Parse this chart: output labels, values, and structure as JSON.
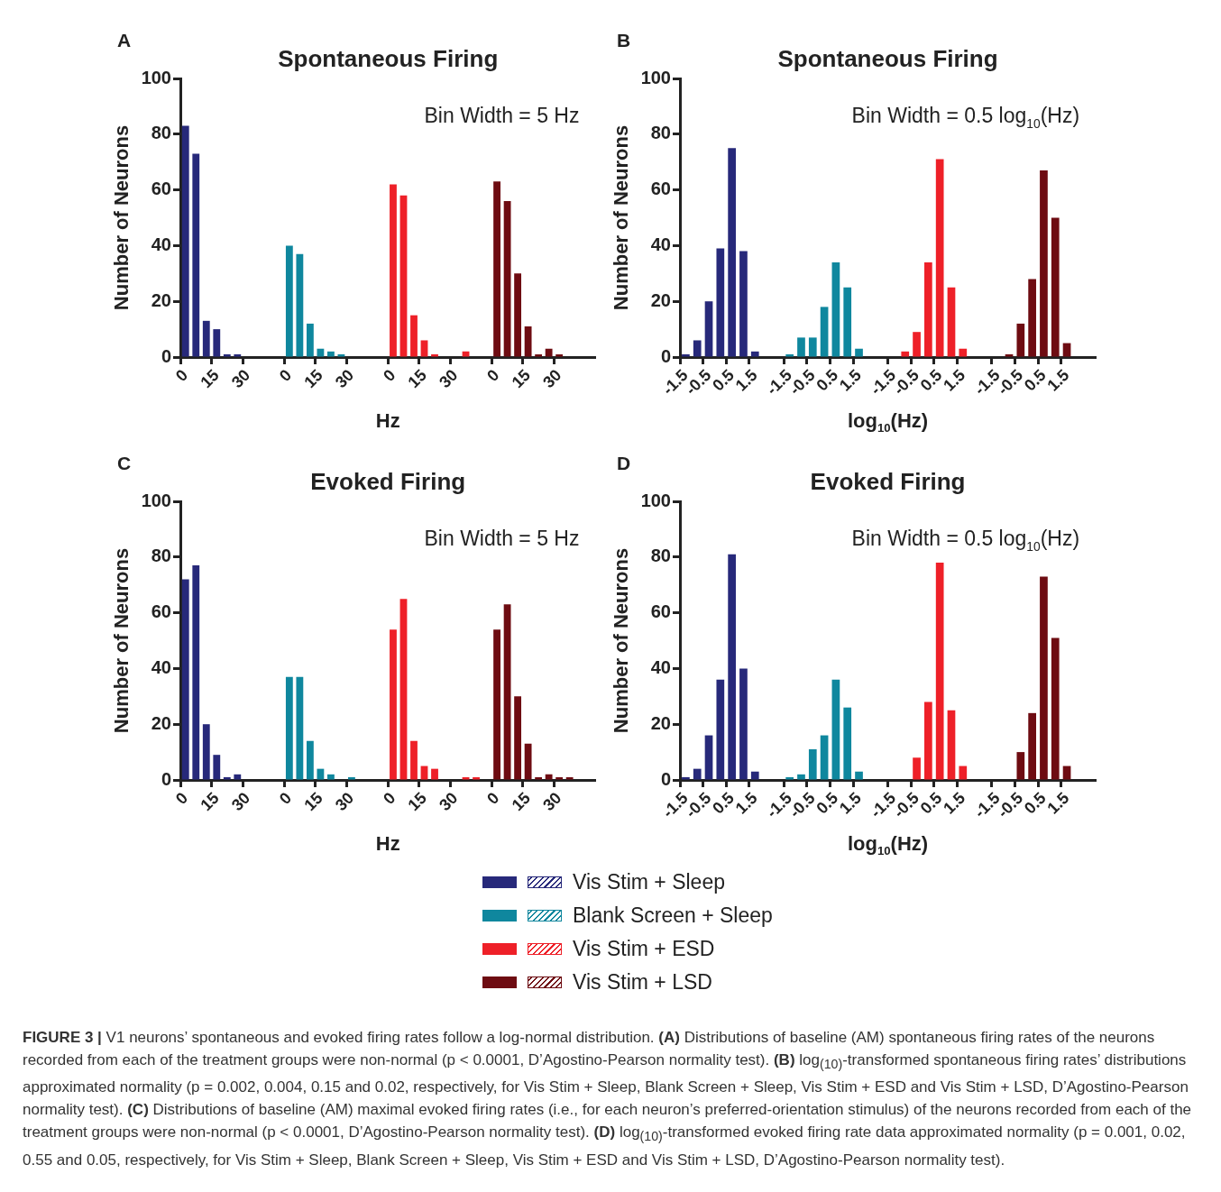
{
  "chart_data": [
    {
      "type": "bar",
      "title": "Spontaneous Firing",
      "xlabel": "Hz",
      "ylabel": "Number of Neurons",
      "annotations": [
        "A",
        "Bin Width = 5 Hz"
      ],
      "categories": [
        "0",
        null,
        null,
        "15",
        null,
        null,
        "30",
        null,
        null,
        null,
        "0",
        null,
        null,
        "15",
        null,
        null,
        "30",
        null,
        null,
        null,
        "0",
        null,
        null,
        "15",
        null,
        null,
        "30",
        null,
        null,
        null,
        "0",
        null,
        null,
        "15",
        null,
        null,
        "30",
        null,
        null,
        null
      ],
      "series": [
        {
          "color": "#27297a",
          "values": [
            83,
            73,
            13,
            10,
            1,
            1,
            null,
            null,
            null,
            null,
            null,
            null,
            null,
            null,
            null,
            null,
            null,
            null,
            null,
            null,
            null,
            null,
            null,
            null,
            null,
            null,
            null,
            null,
            null,
            null,
            null,
            null,
            null,
            null,
            null,
            null,
            null,
            null,
            null,
            null
          ]
        },
        {
          "color": "#0f879e",
          "values": [
            null,
            null,
            null,
            null,
            null,
            null,
            null,
            null,
            null,
            null,
            40,
            37,
            12,
            3,
            2,
            1,
            null,
            null,
            null,
            null,
            null,
            null,
            null,
            null,
            null,
            null,
            null,
            null,
            null,
            null,
            null,
            null,
            null,
            null,
            null,
            null,
            null,
            null,
            null,
            null
          ]
        },
        {
          "color": "#ee2028",
          "values": [
            null,
            null,
            null,
            null,
            null,
            null,
            null,
            null,
            null,
            null,
            null,
            null,
            null,
            null,
            null,
            null,
            null,
            null,
            null,
            null,
            62,
            58,
            15,
            6,
            1,
            0,
            0,
            2,
            null,
            null,
            null,
            null,
            null,
            null,
            null,
            null,
            null,
            null,
            null,
            null
          ]
        },
        {
          "color": "#6e0c12",
          "values": [
            null,
            null,
            null,
            null,
            null,
            null,
            null,
            null,
            null,
            null,
            null,
            null,
            null,
            null,
            null,
            null,
            null,
            null,
            null,
            null,
            null,
            null,
            null,
            null,
            null,
            null,
            null,
            null,
            null,
            null,
            63,
            56,
            30,
            11,
            1,
            3,
            1,
            null,
            null,
            null
          ]
        }
      ],
      "ylim": [
        0,
        100
      ],
      "yticks": [
        0,
        20,
        40,
        60,
        80,
        100
      ]
    },
    {
      "type": "bar",
      "title": "Spontaneous Firing",
      "xlabel": "log$_{10}$(Hz)",
      "ylabel": "Number of Neurons",
      "annotations": [
        "B",
        "Bin Width = 0.5 log$_{10}$(Hz)"
      ],
      "categories": [
        "-1.5",
        null,
        "-0.5",
        null,
        "0.5",
        null,
        "1.5",
        null,
        null,
        "-1.5",
        null,
        "-0.5",
        null,
        "0.5",
        null,
        "1.5",
        null,
        null,
        "-1.5",
        null,
        "-0.5",
        null,
        "0.5",
        null,
        "1.5",
        null,
        null,
        "-1.5",
        null,
        "-0.5",
        null,
        "0.5",
        null,
        "1.5",
        null,
        null
      ],
      "series": [
        {
          "color": "#27297a",
          "values": [
            1,
            6,
            20,
            39,
            75,
            38,
            2,
            null,
            null,
            null,
            null,
            null,
            null,
            null,
            null,
            null,
            null,
            null,
            null,
            null,
            null,
            null,
            null,
            null,
            null,
            null,
            null,
            null,
            null,
            null,
            null,
            null,
            null,
            null,
            null,
            null
          ]
        },
        {
          "color": "#0f879e",
          "values": [
            null,
            null,
            null,
            null,
            null,
            null,
            null,
            null,
            null,
            1,
            7,
            7,
            18,
            34,
            25,
            3,
            null,
            null,
            null,
            null,
            null,
            null,
            null,
            null,
            null,
            null,
            null,
            null,
            null,
            null,
            null,
            null,
            null,
            null,
            null,
            null
          ]
        },
        {
          "color": "#ee2028",
          "values": [
            null,
            null,
            null,
            null,
            null,
            null,
            null,
            null,
            null,
            null,
            null,
            null,
            null,
            null,
            null,
            null,
            null,
            null,
            null,
            2,
            9,
            34,
            71,
            25,
            3,
            null,
            null,
            null,
            null,
            null,
            null,
            null,
            null,
            null,
            null,
            null
          ]
        },
        {
          "color": "#6e0c12",
          "values": [
            null,
            null,
            null,
            null,
            null,
            null,
            null,
            null,
            null,
            null,
            null,
            null,
            null,
            null,
            null,
            null,
            null,
            null,
            null,
            null,
            null,
            null,
            null,
            null,
            null,
            null,
            null,
            null,
            1,
            12,
            28,
            67,
            50,
            5,
            null,
            null
          ]
        }
      ],
      "ylim": [
        0,
        100
      ],
      "yticks": [
        0,
        20,
        40,
        60,
        80,
        100
      ]
    },
    {
      "type": "bar",
      "title": "Evoked Firing",
      "xlabel": "Hz",
      "ylabel": "Number of Neurons",
      "annotations": [
        "C",
        "Bin Width = 5 Hz"
      ],
      "legend": "bottom",
      "categories": [
        "0",
        null,
        null,
        "15",
        null,
        null,
        "30",
        null,
        null,
        null,
        "0",
        null,
        null,
        "15",
        null,
        null,
        "30",
        null,
        null,
        null,
        "0",
        null,
        null,
        "15",
        null,
        null,
        "30",
        null,
        null,
        null,
        "0",
        null,
        null,
        "15",
        null,
        null,
        "30",
        null,
        null,
        null
      ],
      "series": [
        {
          "name": "Vis Stim + Sleep",
          "color": "#27297a",
          "values": [
            72,
            77,
            20,
            9,
            1,
            2,
            null,
            null,
            null,
            null,
            null,
            null,
            null,
            null,
            null,
            null,
            null,
            null,
            null,
            null,
            null,
            null,
            null,
            null,
            null,
            null,
            null,
            null,
            null,
            null,
            null,
            null,
            null,
            null,
            null,
            null,
            null,
            null,
            null,
            null
          ]
        },
        {
          "name": "Blank Screen + Sleep",
          "color": "#0f879e",
          "values": [
            null,
            null,
            null,
            null,
            null,
            null,
            null,
            null,
            null,
            null,
            37,
            37,
            14,
            4,
            2,
            0,
            1,
            null,
            null,
            null,
            null,
            null,
            null,
            null,
            null,
            null,
            null,
            null,
            null,
            null,
            null,
            null,
            null,
            null,
            null,
            null,
            null,
            null,
            null,
            null
          ]
        },
        {
          "name": "Vis Stim + ESD",
          "color": "#ee2028",
          "values": [
            null,
            null,
            null,
            null,
            null,
            null,
            null,
            null,
            null,
            null,
            null,
            null,
            null,
            null,
            null,
            null,
            null,
            null,
            null,
            null,
            54,
            65,
            14,
            5,
            4,
            0,
            0,
            1,
            1,
            null,
            null,
            null,
            null,
            null,
            null,
            null,
            null,
            null,
            null,
            null
          ]
        },
        {
          "name": "Vis Stim + LSD",
          "color": "#6e0c12",
          "values": [
            null,
            null,
            null,
            null,
            null,
            null,
            null,
            null,
            null,
            null,
            null,
            null,
            null,
            null,
            null,
            null,
            null,
            null,
            null,
            null,
            null,
            null,
            null,
            null,
            null,
            null,
            null,
            null,
            null,
            null,
            54,
            63,
            30,
            13,
            1,
            2,
            1,
            1,
            null,
            null
          ]
        }
      ],
      "ylim": [
        0,
        100
      ],
      "yticks": [
        0,
        20,
        40,
        60,
        80,
        100
      ]
    },
    {
      "type": "bar",
      "title": "Evoked Firing",
      "xlabel": "log$_{10}$(Hz)",
      "ylabel": "Number of Neurons",
      "annotations": [
        "D",
        "Bin Width = 0.5 log$_{10}$(Hz)",
        "FIGURE 3 | V1 neurons’ spontaneous and evoked firing rates follow a log-normal distribution. (A) Distributions of baseline (AM) spontaneous firing rates of the neurons recorded from each of the treatment groups were non-normal (p < 0.0001, D’Agostino-Pearson normality test). (B) log$_{(10)}$-transformed spontaneous firing rates’ distributions approximated normality (p = 0.002, 0.004, 0.15 and 0.02, respectively, for Vis Stim + Sleep, Blank Screen + Sleep, Vis Stim + ESD and Vis Stim + LSD, D’Agostino-Pearson normality test). (C) Distributions of baseline (AM) maximal evoked firing rates (i.e., for each neuron’s preferred-orientation stimulus) of the neurons recorded from each of the treatment groups were non-normal (p < 0.0001, D’Agostino-Pearson normality test). (D) log$_{(10)}$-transformed evoked firing rate data approximated normality (p = 0.001, 0.02, 0.55 and 0.05, respectively, for Vis Stim + Sleep, Blank Screen + Sleep, Vis Stim + ESD and Vis Stim + LSD, D’Agostino-Pearson normality test)."
      ],
      "categories": [
        "-1.5",
        null,
        "-0.5",
        null,
        "0.5",
        null,
        "1.5",
        null,
        null,
        "-1.5",
        null,
        "-0.5",
        null,
        "0.5",
        null,
        "1.5",
        null,
        null,
        "-1.5",
        null,
        "-0.5",
        null,
        "0.5",
        null,
        "1.5",
        null,
        null,
        "-1.5",
        null,
        "-0.5",
        null,
        "0.5",
        null,
        "1.5",
        null,
        null
      ],
      "series": [
        {
          "color": "#27297a",
          "values": [
            1,
            4,
            16,
            36,
            81,
            40,
            3,
            null,
            null,
            null,
            null,
            null,
            null,
            null,
            null,
            null,
            null,
            null,
            null,
            null,
            null,
            null,
            null,
            null,
            null,
            null,
            null,
            null,
            null,
            null,
            null,
            null,
            null,
            null,
            null,
            null
          ]
        },
        {
          "color": "#0f879e",
          "values": [
            null,
            null,
            null,
            null,
            null,
            null,
            null,
            null,
            null,
            1,
            2,
            11,
            16,
            36,
            26,
            3,
            null,
            null,
            null,
            null,
            null,
            null,
            null,
            null,
            null,
            null,
            null,
            null,
            null,
            null,
            null,
            null,
            null,
            null,
            null,
            null
          ]
        },
        {
          "color": "#ee2028",
          "values": [
            null,
            null,
            null,
            null,
            null,
            null,
            null,
            null,
            null,
            null,
            null,
            null,
            null,
            null,
            null,
            null,
            null,
            null,
            null,
            null,
            8,
            28,
            78,
            25,
            5,
            null,
            null,
            null,
            null,
            null,
            null,
            null,
            null,
            null,
            null,
            null
          ]
        },
        {
          "color": "#6e0c12",
          "values": [
            null,
            null,
            null,
            null,
            null,
            null,
            null,
            null,
            null,
            null,
            null,
            null,
            null,
            null,
            null,
            null,
            null,
            null,
            null,
            null,
            null,
            null,
            null,
            null,
            null,
            null,
            null,
            null,
            null,
            10,
            24,
            73,
            51,
            5,
            null,
            null
          ]
        }
      ],
      "ylim": [
        0,
        100
      ],
      "yticks": [
        0,
        20,
        40,
        60,
        80,
        100
      ]
    }
  ]
}
